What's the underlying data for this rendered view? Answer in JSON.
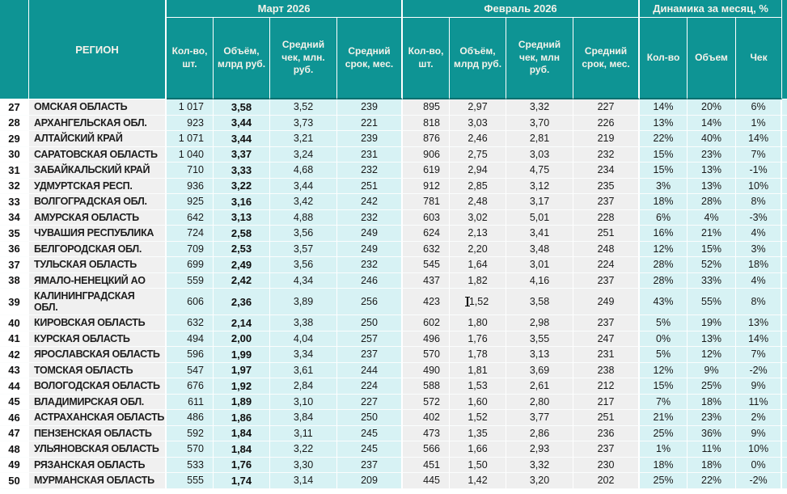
{
  "colors": {
    "header_teal": "#0e9494",
    "header_divider": "#096f6f",
    "march_and_dynamics_bg": "#d7f2f4",
    "february_bg": "#efefef",
    "region_bg": "#f0f0f0",
    "text": "#191919"
  },
  "header": {
    "region": "РЕГИОН",
    "groups": {
      "march": "Март 2026",
      "february": "Февраль 2026",
      "dynamics": "Динамика за месяц, %"
    },
    "march_cols": [
      "Кол-во, шт.",
      "Объём, млрд руб.",
      "Средний чек, млн. руб.",
      "Средний срок, мес."
    ],
    "february_cols": [
      "Кол-во, шт.",
      "Объём, млрд руб.",
      "Средний чек, млн руб.",
      "Средний срок, мес."
    ],
    "dynamics_cols": [
      "Кол-во",
      "Объем",
      "Чек"
    ]
  },
  "rows": [
    {
      "num": "27",
      "region": "ОМСКАЯ ОБЛАСТЬ",
      "march": [
        "1 017",
        "3,58",
        "3,52",
        "239"
      ],
      "feb": [
        "895",
        "2,97",
        "3,32",
        "227"
      ],
      "dyn": [
        "14%",
        "20%",
        "6%"
      ]
    },
    {
      "num": "28",
      "region": "АРХАНГЕЛЬСКАЯ ОБЛ.",
      "march": [
        "923",
        "3,44",
        "3,73",
        "221"
      ],
      "feb": [
        "818",
        "3,03",
        "3,70",
        "226"
      ],
      "dyn": [
        "13%",
        "14%",
        "1%"
      ]
    },
    {
      "num": "29",
      "region": "АЛТАЙСКИЙ КРАЙ",
      "march": [
        "1 071",
        "3,44",
        "3,21",
        "239"
      ],
      "feb": [
        "876",
        "2,46",
        "2,81",
        "219"
      ],
      "dyn": [
        "22%",
        "40%",
        "14%"
      ]
    },
    {
      "num": "30",
      "region": "САРАТОВСКАЯ ОБЛАСТЬ",
      "march": [
        "1 040",
        "3,37",
        "3,24",
        "231"
      ],
      "feb": [
        "906",
        "2,75",
        "3,03",
        "232"
      ],
      "dyn": [
        "15%",
        "23%",
        "7%"
      ]
    },
    {
      "num": "31",
      "region": "ЗАБАЙКАЛЬСКИЙ КРАЙ",
      "march": [
        "710",
        "3,33",
        "4,68",
        "232"
      ],
      "feb": [
        "619",
        "2,94",
        "4,75",
        "234"
      ],
      "dyn": [
        "15%",
        "13%",
        "-1%"
      ]
    },
    {
      "num": "32",
      "region": "УДМУРТСКАЯ РЕСП.",
      "march": [
        "936",
        "3,22",
        "3,44",
        "251"
      ],
      "feb": [
        "912",
        "2,85",
        "3,12",
        "235"
      ],
      "dyn": [
        "3%",
        "13%",
        "10%"
      ]
    },
    {
      "num": "33",
      "region": "ВОЛГОГРАДСКАЯ ОБЛ.",
      "march": [
        "925",
        "3,16",
        "3,42",
        "242"
      ],
      "feb": [
        "781",
        "2,48",
        "3,17",
        "237"
      ],
      "dyn": [
        "18%",
        "28%",
        "8%"
      ]
    },
    {
      "num": "34",
      "region": "АМУРСКАЯ ОБЛАСТЬ",
      "march": [
        "642",
        "3,13",
        "4,88",
        "232"
      ],
      "feb": [
        "603",
        "3,02",
        "5,01",
        "228"
      ],
      "dyn": [
        "6%",
        "4%",
        "-3%"
      ]
    },
    {
      "num": "35",
      "region": "ЧУВАШИЯ РЕСПУБЛИКА",
      "march": [
        "724",
        "2,58",
        "3,56",
        "249"
      ],
      "feb": [
        "624",
        "2,13",
        "3,41",
        "251"
      ],
      "dyn": [
        "16%",
        "21%",
        "4%"
      ]
    },
    {
      "num": "36",
      "region": "БЕЛГОРОДСКАЯ ОБЛ.",
      "march": [
        "709",
        "2,53",
        "3,57",
        "249"
      ],
      "feb": [
        "632",
        "2,20",
        "3,48",
        "248"
      ],
      "dyn": [
        "12%",
        "15%",
        "3%"
      ]
    },
    {
      "num": "37",
      "region": "ТУЛЬСКАЯ ОБЛАСТЬ",
      "march": [
        "699",
        "2,49",
        "3,56",
        "232"
      ],
      "feb": [
        "545",
        "1,64",
        "3,01",
        "224"
      ],
      "dyn": [
        "28%",
        "52%",
        "18%"
      ]
    },
    {
      "num": "38",
      "region": "ЯМАЛО-НЕНЕЦКИЙ АО",
      "march": [
        "559",
        "2,42",
        "4,34",
        "246"
      ],
      "feb": [
        "437",
        "1,82",
        "4,16",
        "237"
      ],
      "dyn": [
        "28%",
        "33%",
        "4%"
      ]
    },
    {
      "num": "39",
      "region": "КАЛИНИНГРАДСКАЯ ОБЛ.",
      "march": [
        "606",
        "2,36",
        "3,89",
        "256"
      ],
      "feb": [
        "423",
        "1,52",
        "3,58",
        "249"
      ],
      "dyn": [
        "43%",
        "55%",
        "8%"
      ],
      "tall": true,
      "cursor": true
    },
    {
      "num": "40",
      "region": "КИРОВСКАЯ ОБЛАСТЬ",
      "march": [
        "632",
        "2,14",
        "3,38",
        "250"
      ],
      "feb": [
        "602",
        "1,80",
        "2,98",
        "237"
      ],
      "dyn": [
        "5%",
        "19%",
        "13%"
      ]
    },
    {
      "num": "41",
      "region": "КУРСКАЯ ОБЛАСТЬ",
      "march": [
        "494",
        "2,00",
        "4,04",
        "257"
      ],
      "feb": [
        "496",
        "1,76",
        "3,55",
        "247"
      ],
      "dyn": [
        "0%",
        "13%",
        "14%"
      ]
    },
    {
      "num": "42",
      "region": "ЯРОСЛАВСКАЯ ОБЛАСТЬ",
      "march": [
        "596",
        "1,99",
        "3,34",
        "237"
      ],
      "feb": [
        "570",
        "1,78",
        "3,13",
        "231"
      ],
      "dyn": [
        "5%",
        "12%",
        "7%"
      ]
    },
    {
      "num": "43",
      "region": "ТОМСКАЯ ОБЛАСТЬ",
      "march": [
        "547",
        "1,97",
        "3,61",
        "244"
      ],
      "feb": [
        "490",
        "1,81",
        "3,69",
        "238"
      ],
      "dyn": [
        "12%",
        "9%",
        "-2%"
      ]
    },
    {
      "num": "44",
      "region": "ВОЛОГОДСКАЯ ОБЛАСТЬ",
      "march": [
        "676",
        "1,92",
        "2,84",
        "224"
      ],
      "feb": [
        "588",
        "1,53",
        "2,61",
        "212"
      ],
      "dyn": [
        "15%",
        "25%",
        "9%"
      ]
    },
    {
      "num": "45",
      "region": "ВЛАДИМИРСКАЯ ОБЛ.",
      "march": [
        "611",
        "1,89",
        "3,10",
        "227"
      ],
      "feb": [
        "572",
        "1,60",
        "2,80",
        "217"
      ],
      "dyn": [
        "7%",
        "18%",
        "11%"
      ]
    },
    {
      "num": "46",
      "region": "АСТРАХАНСКАЯ ОБЛАСТЬ",
      "march": [
        "486",
        "1,86",
        "3,84",
        "250"
      ],
      "feb": [
        "402",
        "1,52",
        "3,77",
        "251"
      ],
      "dyn": [
        "21%",
        "23%",
        "2%"
      ]
    },
    {
      "num": "47",
      "region": "ПЕНЗЕНСКАЯ ОБЛАСТЬ",
      "march": [
        "592",
        "1,84",
        "3,11",
        "245"
      ],
      "feb": [
        "473",
        "1,35",
        "2,86",
        "236"
      ],
      "dyn": [
        "25%",
        "36%",
        "9%"
      ]
    },
    {
      "num": "48",
      "region": "УЛЬЯНОВСКАЯ ОБЛАСТЬ",
      "march": [
        "570",
        "1,84",
        "3,22",
        "245"
      ],
      "feb": [
        "566",
        "1,66",
        "2,93",
        "237"
      ],
      "dyn": [
        "1%",
        "11%",
        "10%"
      ]
    },
    {
      "num": "49",
      "region": "РЯЗАНСКАЯ ОБЛАСТЬ",
      "march": [
        "533",
        "1,76",
        "3,30",
        "237"
      ],
      "feb": [
        "451",
        "1,50",
        "3,32",
        "230"
      ],
      "dyn": [
        "18%",
        "18%",
        "0%"
      ]
    },
    {
      "num": "50",
      "region": "МУРМАНСКАЯ ОБЛАСТЬ",
      "march": [
        "555",
        "1,74",
        "3,14",
        "209"
      ],
      "feb": [
        "445",
        "1,42",
        "3,20",
        "202"
      ],
      "dyn": [
        "25%",
        "22%",
        "-2%"
      ]
    }
  ]
}
